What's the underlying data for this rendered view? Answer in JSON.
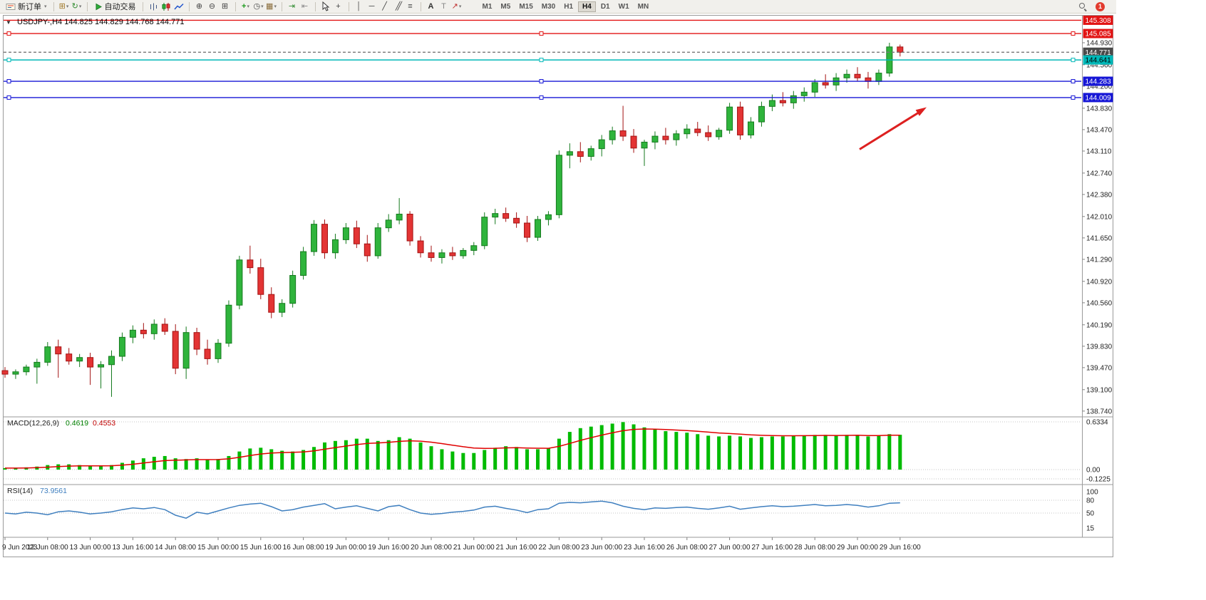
{
  "toolbar": {
    "new_order_label": "新订单",
    "autotrade_label": "自动交易",
    "notification_count": "1",
    "timeframes": [
      "M1",
      "M5",
      "M15",
      "M30",
      "H1",
      "H4",
      "D1",
      "W1",
      "MN"
    ],
    "active_timeframe": "H4",
    "items": [
      {
        "kind": "button",
        "name": "new-order-button",
        "icon": "ticket",
        "label_key": "new_order_label",
        "dropdown": true
      },
      {
        "kind": "sep"
      },
      {
        "kind": "icon",
        "name": "new-chart-icon",
        "glyph": "⊞",
        "color": "#a07828",
        "dropdown": true
      },
      {
        "kind": "icon",
        "name": "profiles-icon",
        "glyph": "↻",
        "color": "#2e8b2e",
        "dropdown": true
      },
      {
        "kind": "sep"
      },
      {
        "kind": "button",
        "name": "autotrade-button",
        "icon": "play",
        "label_key": "autotrade_label"
      },
      {
        "kind": "sep"
      },
      {
        "kind": "svg",
        "name": "bars-icon",
        "svg": "bars"
      },
      {
        "kind": "svg",
        "name": "candlesticks-icon",
        "svg": "candles"
      },
      {
        "kind": "svg",
        "name": "line-chart-icon",
        "svg": "line"
      },
      {
        "kind": "sep"
      },
      {
        "kind": "icon",
        "name": "zoom-in-icon",
        "glyph": "⊕",
        "color": "#444"
      },
      {
        "kind": "icon",
        "name": "zoom-out-icon",
        "glyph": "⊖",
        "color": "#444"
      },
      {
        "kind": "icon",
        "name": "tile-windows-icon",
        "glyph": "⊞",
        "color": "#444"
      },
      {
        "kind": "sep"
      },
      {
        "kind": "icon",
        "name": "indicators-icon",
        "glyph": "+",
        "color": "#1a9a1a",
        "bold": true,
        "dropdown": true
      },
      {
        "kind": "icon",
        "name": "periods-icon",
        "glyph": "◷",
        "color": "#444",
        "dropdown": true
      },
      {
        "kind": "icon",
        "name": "templates-icon",
        "glyph": "▦",
        "color": "#8a6d3b",
        "dropdown": true
      },
      {
        "kind": "sep"
      },
      {
        "kind": "icon",
        "name": "auto-scroll-icon",
        "glyph": "⇥",
        "color": "#2e8b2e"
      },
      {
        "kind": "icon",
        "name": "chart-shift-icon",
        "glyph": "⇤",
        "color": "#888"
      },
      {
        "kind": "sep"
      },
      {
        "kind": "svg",
        "name": "cursor-icon",
        "svg": "cursor"
      },
      {
        "kind": "icon",
        "name": "crosshair-icon",
        "glyph": "+",
        "color": "#444"
      },
      {
        "kind": "sep"
      },
      {
        "kind": "icon",
        "name": "vertical-line-icon",
        "glyph": "│",
        "color": "#444"
      },
      {
        "kind": "icon",
        "name": "horizontal-line-icon",
        "glyph": "─",
        "color": "#444"
      },
      {
        "kind": "icon",
        "name": "trendline-icon",
        "glyph": "╱",
        "color": "#444"
      },
      {
        "kind": "icon",
        "name": "channel-icon",
        "glyph": "╱╱",
        "color": "#444"
      },
      {
        "kind": "icon",
        "name": "fibonacci-icon",
        "glyph": "≡",
        "color": "#444"
      },
      {
        "kind": "sep"
      },
      {
        "kind": "icon",
        "name": "text-icon",
        "glyph": "A",
        "color": "#333",
        "bold": true
      },
      {
        "kind": "icon",
        "name": "label-icon",
        "glyph": "T",
        "color": "#888"
      },
      {
        "kind": "icon",
        "name": "arrows-icon",
        "glyph": "↗",
        "color": "#c03030",
        "dropdown": true
      }
    ]
  },
  "chart": {
    "window_menu_glyph": "▼",
    "title": "USDJPY-,H4 144.825 144.829 144.768 144.771",
    "price_axis": [
      "144.930",
      "144.560",
      "144.200",
      "143.830",
      "143.470",
      "143.110",
      "142.740",
      "142.380",
      "142.010",
      "141.650",
      "141.290",
      "140.920",
      "140.560",
      "140.190",
      "139.830",
      "139.470",
      "139.100",
      "138.740"
    ],
    "levels": [
      {
        "label": "145.308",
        "price": 145.308,
        "color": "#e21414",
        "style": "solid",
        "handles": false,
        "tag_bg": "#e21414",
        "tag_fg": "#ffffff"
      },
      {
        "label": "145.085",
        "price": 145.085,
        "color": "#e21414",
        "style": "solid",
        "handles": true,
        "tag_bg": "#e21414",
        "tag_fg": "#ffffff"
      },
      {
        "label": "144.771",
        "price": 144.771,
        "color": "#777777",
        "style": "dashed",
        "handles": false,
        "tag_bg": "#4a4a4a",
        "tag_fg": "#ffffff"
      },
      {
        "label": "144.641",
        "price": 144.641,
        "color": "#00b8b8",
        "style": "solid",
        "handles": true,
        "tag_bg": "#00b8b8",
        "tag_fg": "#000000"
      },
      {
        "label": "144.283",
        "price": 144.283,
        "color": "#1616d6",
        "style": "solid",
        "handles": true,
        "tag_bg": "#1616d6",
        "tag_fg": "#ffffff"
      },
      {
        "label": "144.009",
        "price": 144.009,
        "color": "#1616d6",
        "style": "solid",
        "handles": true,
        "tag_bg": "#1616d6",
        "tag_fg": "#ffffff"
      }
    ],
    "time_axis": [
      {
        "i": 0,
        "label": "9 Jun 2023"
      },
      {
        "i": 4,
        "label": "12 Jun 08:00"
      },
      {
        "i": 8,
        "label": "13 Jun 00:00"
      },
      {
        "i": 12,
        "label": "13 Jun 16:00"
      },
      {
        "i": 16,
        "label": "14 Jun 08:00"
      },
      {
        "i": 20,
        "label": "15 Jun 00:00"
      },
      {
        "i": 24,
        "label": "15 Jun 16:00"
      },
      {
        "i": 28,
        "label": "16 Jun 08:00"
      },
      {
        "i": 32,
        "label": "19 Jun 00:00"
      },
      {
        "i": 36,
        "label": "19 Jun 16:00"
      },
      {
        "i": 40,
        "label": "20 Jun 08:00"
      },
      {
        "i": 44,
        "label": "21 Jun 00:00"
      },
      {
        "i": 48,
        "label": "21 Jun 16:00"
      },
      {
        "i": 52,
        "label": "22 Jun 08:00"
      },
      {
        "i": 56,
        "label": "23 Jun 00:00"
      },
      {
        "i": 60,
        "label": "23 Jun 16:00"
      },
      {
        "i": 64,
        "label": "26 Jun 08:00"
      },
      {
        "i": 68,
        "label": "27 Jun 00:00"
      },
      {
        "i": 72,
        "label": "27 Jun 16:00"
      },
      {
        "i": 76,
        "label": "28 Jun 08:00"
      },
      {
        "i": 80,
        "label": "29 Jun 00:00"
      },
      {
        "i": 84,
        "label": "29 Jun 16:00"
      }
    ],
    "colors": {
      "up": "#2fb43c",
      "up_edge": "#157a1e",
      "down": "#e33434",
      "down_edge": "#a31212"
    }
  },
  "chart_data": {
    "type": "candlestick",
    "symbol": "USDJPY-",
    "timeframe": "H4",
    "ohlc": [
      [
        139.42,
        139.48,
        139.3,
        139.36
      ],
      [
        139.36,
        139.44,
        139.28,
        139.4
      ],
      [
        139.4,
        139.52,
        139.34,
        139.48
      ],
      [
        139.48,
        139.62,
        139.2,
        139.56
      ],
      [
        139.56,
        139.9,
        139.5,
        139.82
      ],
      [
        139.82,
        139.94,
        139.3,
        139.7
      ],
      [
        139.7,
        139.8,
        139.52,
        139.58
      ],
      [
        139.58,
        139.7,
        139.48,
        139.64
      ],
      [
        139.64,
        139.72,
        139.18,
        139.48
      ],
      [
        139.48,
        139.58,
        139.12,
        139.52
      ],
      [
        139.52,
        139.76,
        138.98,
        139.66
      ],
      [
        139.66,
        140.06,
        139.58,
        139.98
      ],
      [
        139.98,
        140.18,
        139.88,
        140.1
      ],
      [
        140.1,
        140.22,
        139.96,
        140.04
      ],
      [
        140.04,
        140.28,
        139.94,
        140.2
      ],
      [
        140.2,
        140.3,
        140.02,
        140.08
      ],
      [
        140.08,
        140.2,
        139.36,
        139.46
      ],
      [
        139.46,
        140.16,
        139.28,
        140.06
      ],
      [
        140.06,
        140.14,
        139.68,
        139.78
      ],
      [
        139.78,
        139.94,
        139.52,
        139.62
      ],
      [
        139.62,
        139.95,
        139.55,
        139.88
      ],
      [
        139.88,
        140.6,
        139.82,
        140.52
      ],
      [
        140.52,
        141.35,
        140.45,
        141.28
      ],
      [
        141.28,
        141.52,
        141.05,
        141.15
      ],
      [
        141.15,
        141.3,
        140.62,
        140.7
      ],
      [
        140.7,
        140.82,
        140.3,
        140.4
      ],
      [
        140.4,
        140.62,
        140.32,
        140.55
      ],
      [
        140.55,
        141.1,
        140.48,
        141.02
      ],
      [
        141.02,
        141.5,
        140.95,
        141.42
      ],
      [
        141.42,
        141.95,
        141.35,
        141.88
      ],
      [
        141.88,
        141.96,
        141.3,
        141.4
      ],
      [
        141.4,
        141.72,
        141.3,
        141.62
      ],
      [
        141.62,
        141.9,
        141.55,
        141.82
      ],
      [
        141.82,
        141.94,
        141.48,
        141.55
      ],
      [
        141.55,
        141.7,
        141.25,
        141.35
      ],
      [
        141.35,
        141.9,
        141.3,
        141.82
      ],
      [
        141.82,
        142.05,
        141.75,
        141.95
      ],
      [
        141.95,
        142.32,
        141.88,
        142.05
      ],
      [
        142.05,
        142.1,
        141.52,
        141.6
      ],
      [
        141.6,
        141.68,
        141.32,
        141.4
      ],
      [
        141.4,
        141.52,
        141.25,
        141.32
      ],
      [
        141.32,
        141.46,
        141.22,
        141.4
      ],
      [
        141.4,
        141.5,
        141.28,
        141.35
      ],
      [
        141.35,
        141.48,
        141.3,
        141.44
      ],
      [
        141.44,
        141.58,
        141.36,
        141.52
      ],
      [
        141.52,
        142.08,
        141.46,
        142.0
      ],
      [
        142.0,
        142.14,
        141.88,
        142.06
      ],
      [
        142.06,
        142.16,
        141.92,
        141.98
      ],
      [
        141.98,
        142.08,
        141.82,
        141.9
      ],
      [
        141.9,
        142.02,
        141.58,
        141.66
      ],
      [
        141.66,
        142.02,
        141.6,
        141.96
      ],
      [
        141.96,
        142.1,
        141.86,
        142.04
      ],
      [
        142.04,
        143.12,
        141.98,
        143.04
      ],
      [
        143.04,
        143.24,
        142.82,
        143.1
      ],
      [
        143.1,
        143.26,
        142.92,
        143.02
      ],
      [
        143.02,
        143.2,
        142.95,
        143.15
      ],
      [
        143.15,
        143.38,
        143.02,
        143.3
      ],
      [
        143.3,
        143.52,
        143.22,
        143.45
      ],
      [
        143.45,
        143.87,
        143.28,
        143.36
      ],
      [
        143.36,
        143.48,
        143.08,
        143.16
      ],
      [
        143.16,
        143.3,
        142.86,
        143.26
      ],
      [
        143.26,
        143.44,
        143.14,
        143.36
      ],
      [
        143.36,
        143.5,
        143.22,
        143.3
      ],
      [
        143.3,
        143.46,
        143.2,
        143.4
      ],
      [
        143.4,
        143.56,
        143.32,
        143.48
      ],
      [
        143.48,
        143.6,
        143.36,
        143.42
      ],
      [
        143.42,
        143.54,
        143.28,
        143.35
      ],
      [
        143.35,
        143.5,
        143.3,
        143.46
      ],
      [
        143.46,
        143.92,
        143.4,
        143.85
      ],
      [
        143.85,
        143.94,
        143.3,
        143.38
      ],
      [
        143.38,
        143.68,
        143.32,
        143.6
      ],
      [
        143.6,
        143.94,
        143.52,
        143.86
      ],
      [
        143.86,
        144.06,
        143.78,
        143.96
      ],
      [
        143.96,
        144.1,
        143.86,
        143.92
      ],
      [
        143.92,
        144.12,
        143.82,
        144.04
      ],
      [
        144.04,
        144.18,
        143.94,
        144.1
      ],
      [
        144.1,
        144.32,
        144.02,
        144.26
      ],
      [
        144.26,
        144.4,
        144.16,
        144.22
      ],
      [
        144.22,
        144.42,
        144.12,
        144.34
      ],
      [
        144.34,
        144.48,
        144.26,
        144.4
      ],
      [
        144.4,
        144.52,
        144.28,
        144.34
      ],
      [
        144.34,
        144.44,
        144.16,
        144.28
      ],
      [
        144.28,
        144.48,
        144.22,
        144.42
      ],
      [
        144.42,
        144.93,
        144.36,
        144.86
      ],
      [
        144.86,
        144.9,
        144.7,
        144.77
      ]
    ]
  },
  "macd": {
    "label": "MACD(12,26,9)",
    "value_main": "0.4619",
    "value_signal": "0.4553",
    "scale": [
      "0.6334",
      "0.00",
      "-0.1225"
    ],
    "scale_values": [
      0.6334,
      0,
      -0.1225
    ],
    "values": [
      0.02,
      0.02,
      0.03,
      0.04,
      0.06,
      0.07,
      0.07,
      0.06,
      0.05,
      0.05,
      0.06,
      0.09,
      0.12,
      0.15,
      0.17,
      0.18,
      0.15,
      0.14,
      0.15,
      0.13,
      0.14,
      0.18,
      0.24,
      0.28,
      0.29,
      0.27,
      0.25,
      0.24,
      0.26,
      0.3,
      0.36,
      0.38,
      0.39,
      0.41,
      0.41,
      0.38,
      0.39,
      0.43,
      0.41,
      0.36,
      0.31,
      0.27,
      0.24,
      0.22,
      0.22,
      0.26,
      0.29,
      0.31,
      0.3,
      0.27,
      0.27,
      0.28,
      0.41,
      0.5,
      0.55,
      0.57,
      0.59,
      0.61,
      0.63,
      0.6,
      0.56,
      0.53,
      0.51,
      0.5,
      0.49,
      0.47,
      0.45,
      0.44,
      0.45,
      0.44,
      0.42,
      0.43,
      0.44,
      0.44,
      0.45,
      0.45,
      0.46,
      0.46,
      0.45,
      0.46,
      0.46,
      0.44,
      0.45,
      0.47,
      0.4619
    ],
    "histogram_color": "#00bb00",
    "signal_color": "#e00000"
  },
  "rsi": {
    "label": "RSI(14)",
    "value": "73.9561",
    "scale": [
      "100",
      "80",
      "50",
      "15"
    ],
    "scale_values": [
      100,
      80,
      50,
      15
    ],
    "dashed_levels": [
      80,
      50
    ],
    "line_color": "#3f7fbf",
    "values": [
      50,
      48,
      52,
      50,
      46,
      53,
      55,
      52,
      48,
      50,
      53,
      58,
      62,
      60,
      63,
      58,
      45,
      38,
      52,
      48,
      55,
      62,
      68,
      71,
      73,
      65,
      55,
      58,
      64,
      68,
      72,
      60,
      64,
      67,
      61,
      55,
      65,
      68,
      58,
      50,
      47,
      49,
      52,
      54,
      57,
      64,
      66,
      61,
      57,
      51,
      58,
      60,
      73,
      75,
      74,
      76,
      78,
      74,
      66,
      61,
      58,
      62,
      61,
      63,
      64,
      61,
      59,
      62,
      66,
      59,
      62,
      65,
      67,
      65,
      66,
      68,
      70,
      67,
      68,
      70,
      68,
      64,
      67,
      73,
      73.96
    ]
  },
  "annotation": {
    "arrow_color": "#dd2020"
  }
}
